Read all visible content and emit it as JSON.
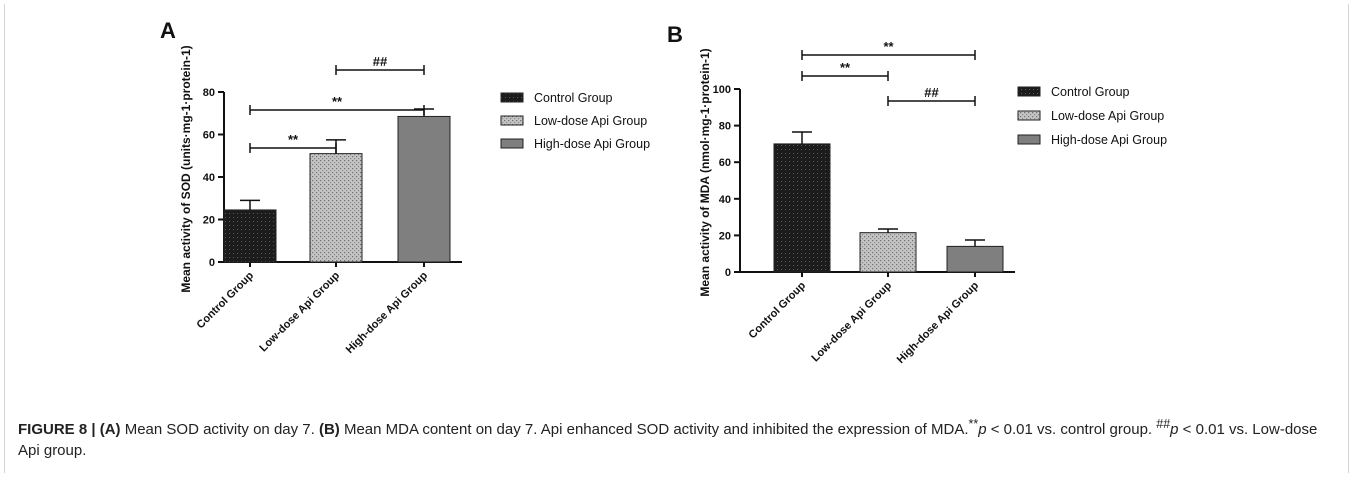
{
  "chart_data": [
    {
      "type": "bar",
      "panel_label": "A",
      "categories": [
        "Control Group",
        "Low-dose Api Group",
        "High-dose Api Group"
      ],
      "values": [
        24.5,
        51,
        68.5
      ],
      "errors": [
        4.5,
        6.5,
        3.5
      ],
      "ylabel": "Mean activity of SOD (units·mg-1·protein-1)",
      "ylim": [
        0,
        80
      ],
      "yticks": [
        "0",
        "20",
        "40",
        "60",
        "80"
      ],
      "legend": [
        "Control Group",
        "Low-dose Api Group",
        "High-dose Api Group"
      ],
      "legend_position": "right",
      "grid": false,
      "annotations": [
        {
          "from": 0,
          "to": 1,
          "text": "**"
        },
        {
          "from": 0,
          "to": 2,
          "text": "**"
        },
        {
          "from": 1,
          "to": 2,
          "text": "##"
        }
      ]
    },
    {
      "type": "bar",
      "panel_label": "B",
      "categories": [
        "Control Group",
        "Low-dose Api Group",
        "High-dose Api Group"
      ],
      "values": [
        70,
        21.5,
        14
      ],
      "errors": [
        6.5,
        2,
        3.5
      ],
      "ylabel": "Mean activity of MDA (nmol·mg-1·protein-1)",
      "ylim": [
        0,
        100
      ],
      "yticks": [
        "0",
        "20",
        "40",
        "60",
        "80",
        "100"
      ],
      "legend": [
        "Control Group",
        "Low-dose Api Group",
        "High-dose Api Group"
      ],
      "legend_position": "right",
      "grid": false,
      "annotations": [
        {
          "from": 0,
          "to": 1,
          "text": "**"
        },
        {
          "from": 0,
          "to": 2,
          "text": "**"
        },
        {
          "from": 1,
          "to": 2,
          "text": "##"
        }
      ]
    }
  ],
  "colors": {
    "control": "#1c1c1c",
    "low_dose": "#b5b5b5",
    "high_dose": "#7f7f7f",
    "axis": "#111111"
  },
  "caption": {
    "figure_label": "FIGURE 8 |",
    "part_a_label": "(A)",
    "part_a_text": " Mean SOD activity on day 7. ",
    "part_b_label": "(B)",
    "part_b_text": " Mean MDA content on day 7. Api enhanced SOD activity and inhibited the expression of MDA.",
    "sig_marker_1": "**",
    "sig_p_1": "p",
    "sig_text_1": " < 0.01 vs. control group. ",
    "sig_marker_2": "##",
    "sig_p_2": "p",
    "sig_text_2": " < 0.01 vs. Low-dose Api group."
  }
}
